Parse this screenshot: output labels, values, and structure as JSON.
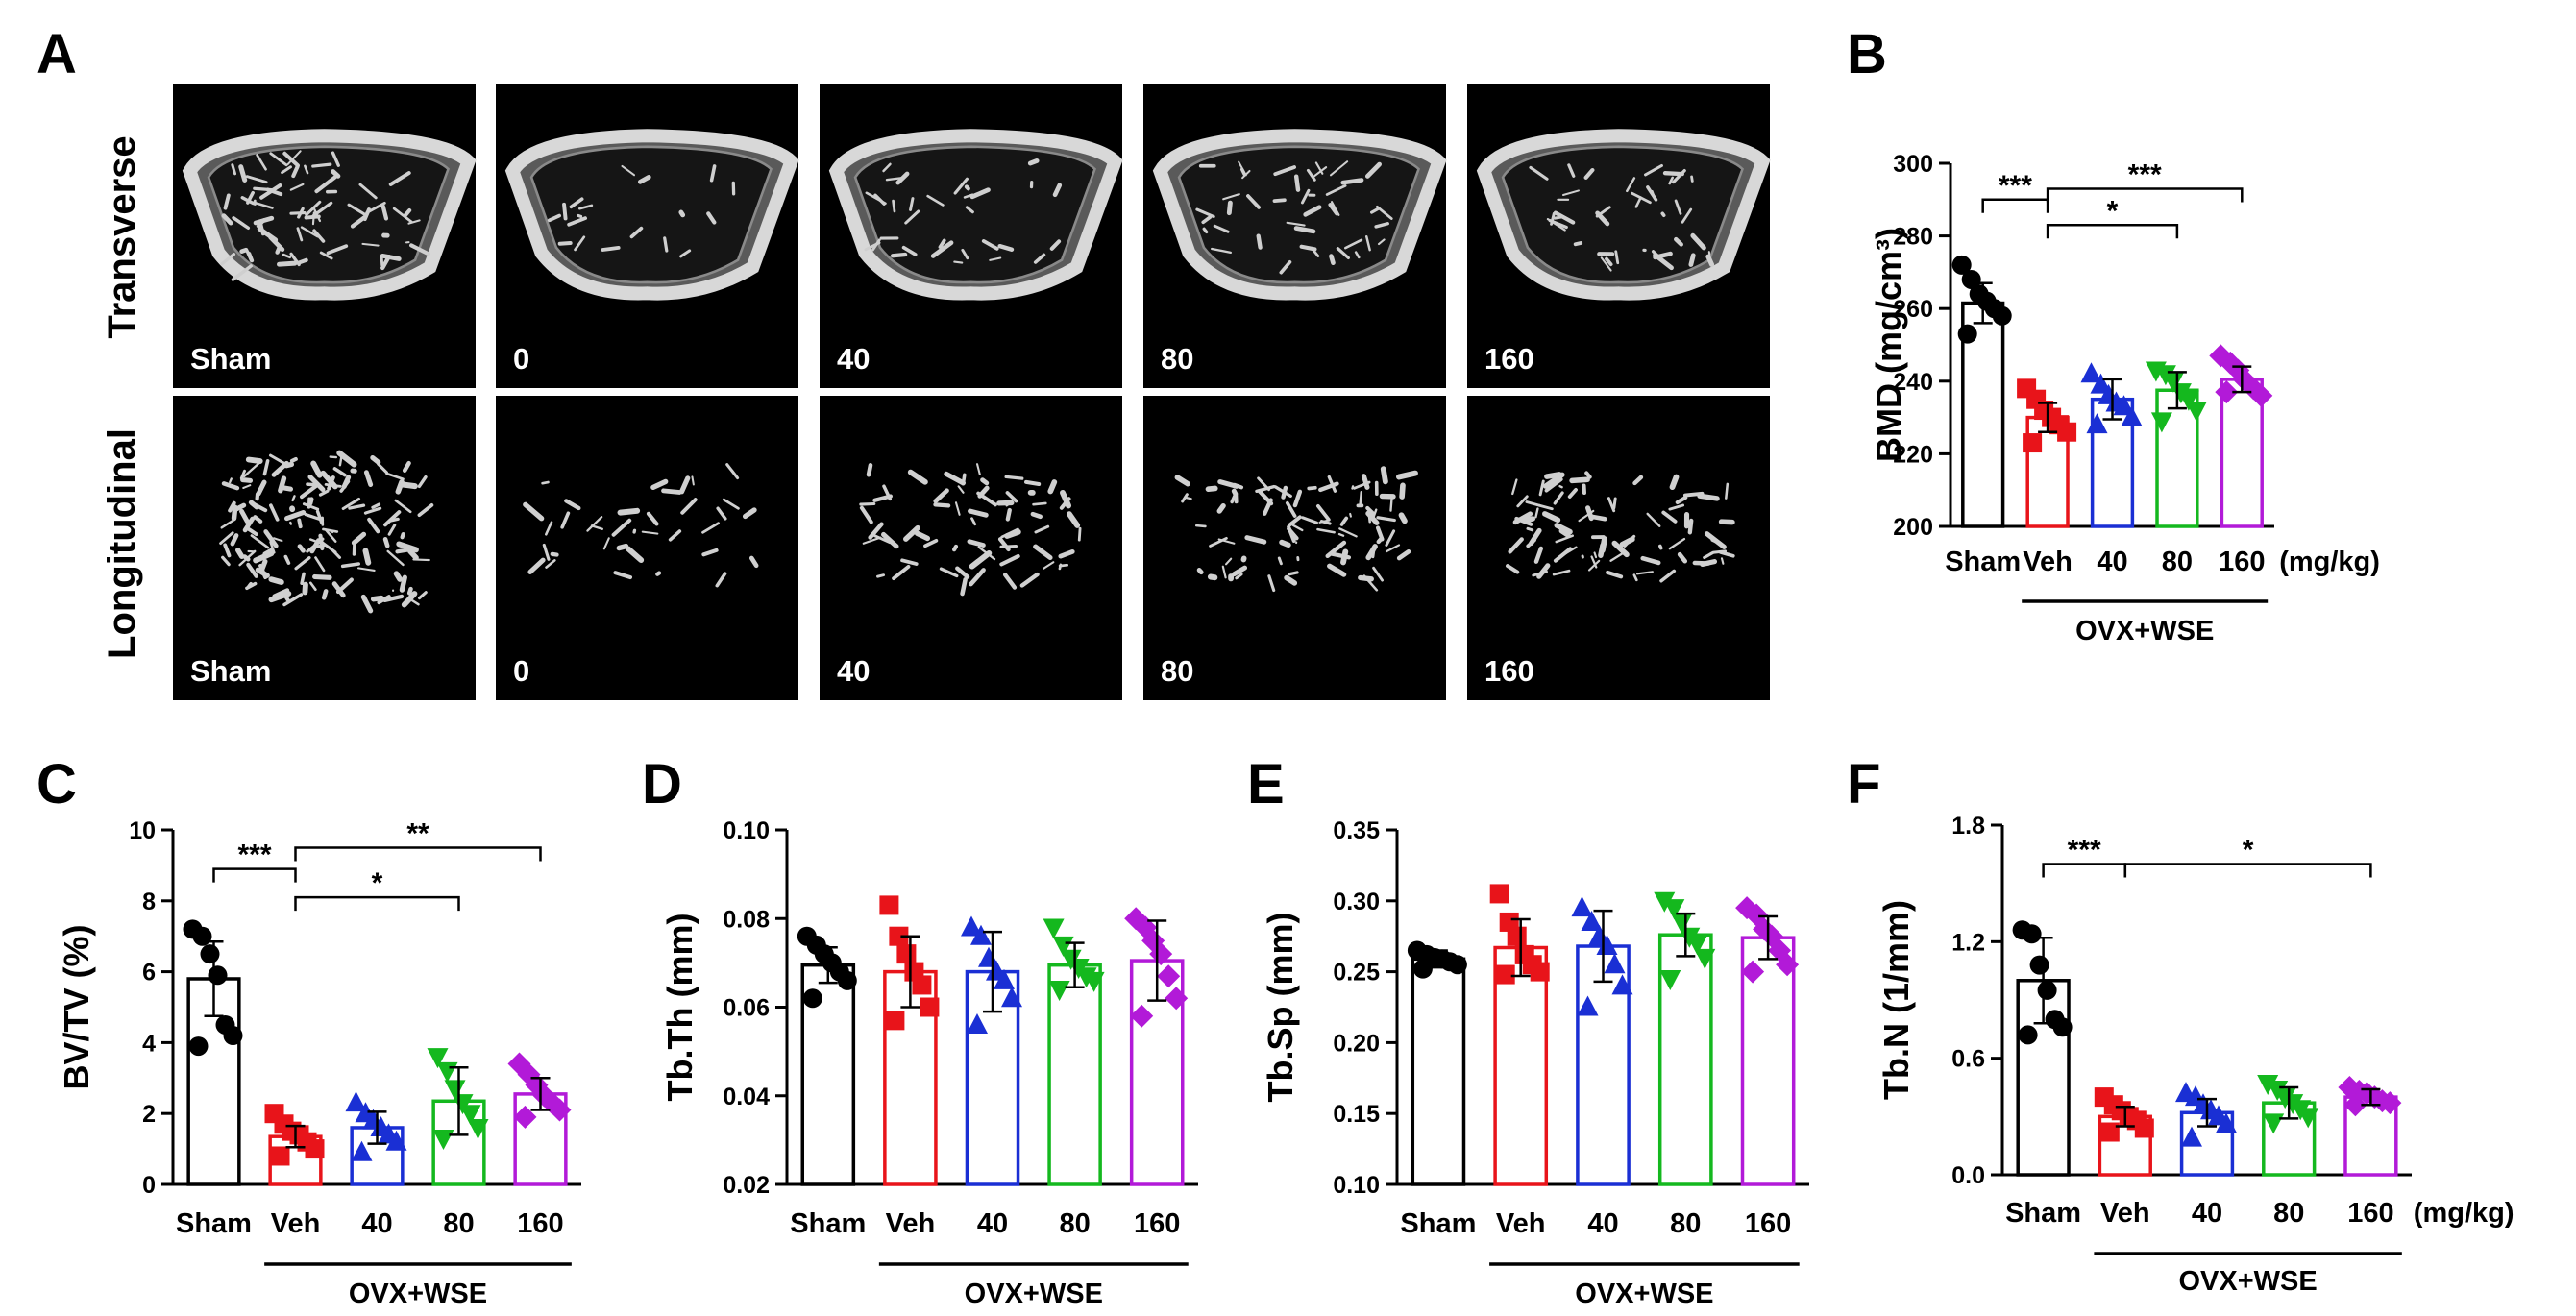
{
  "panels": {
    "A": {
      "letter": "A",
      "row_labels": [
        "Transverse",
        "Longitudinal"
      ],
      "column_labels": [
        "Sham",
        "0",
        "40",
        "80",
        "160"
      ]
    }
  },
  "categories": [
    "Sham",
    "Veh",
    "40",
    "80",
    "160"
  ],
  "colors": [
    "#000000",
    "#e8141a",
    "#1a2fd4",
    "#14b81e",
    "#b21ad8"
  ],
  "marker_shapes": [
    "circle",
    "square",
    "triangle-up",
    "triangle-down",
    "diamond"
  ],
  "group_label": "OVX+WSE",
  "unit_label": "(mg/kg)",
  "chart_data": [
    {
      "id": "B",
      "type": "bar",
      "letter": "B",
      "ylabel": "BMD (mg/cm³)",
      "ylim": [
        200,
        300
      ],
      "yticks": [
        200,
        220,
        240,
        260,
        280,
        300
      ],
      "decimals": 0,
      "categories": [
        "Sham",
        "Veh",
        "40",
        "80",
        "160"
      ],
      "values": [
        261.5,
        230,
        235,
        237.5,
        240.5
      ],
      "sd": [
        5.5,
        4,
        5.5,
        5,
        3.5
      ],
      "points": [
        [
          272,
          268,
          264,
          262,
          260,
          258,
          253
        ],
        [
          238,
          235,
          232,
          230,
          228,
          226,
          223
        ],
        [
          242,
          239,
          236,
          234,
          233,
          230,
          228
        ],
        [
          243,
          242,
          240,
          237,
          235,
          232,
          229
        ],
        [
          247,
          245,
          243,
          240,
          238,
          236,
          237
        ]
      ],
      "significance": [
        {
          "from": 0,
          "to": 1,
          "label": "***",
          "y": 290
        },
        {
          "from": 1,
          "to": 3,
          "label": "*",
          "y": 283
        },
        {
          "from": 1,
          "to": 4,
          "label": "***",
          "y": 293
        }
      ],
      "show_unit": true
    },
    {
      "id": "C",
      "type": "bar",
      "letter": "C",
      "ylabel": "BV/TV (%)",
      "ylim": [
        0,
        10
      ],
      "yticks": [
        0,
        2,
        4,
        6,
        8,
        10
      ],
      "decimals": 0,
      "categories": [
        "Sham",
        "Veh",
        "40",
        "80",
        "160"
      ],
      "values": [
        5.8,
        1.35,
        1.6,
        2.35,
        2.55
      ],
      "sd": [
        1.05,
        0.3,
        0.45,
        0.95,
        0.45
      ],
      "points": [
        [
          7.2,
          7.0,
          6.5,
          5.9,
          4.5,
          4.2,
          3.9
        ],
        [
          2.0,
          1.7,
          1.5,
          1.4,
          1.2,
          1.0,
          0.8
        ],
        [
          2.3,
          2.0,
          1.8,
          1.6,
          1.4,
          1.2,
          0.9
        ],
        [
          3.6,
          3.2,
          2.7,
          2.3,
          2.0,
          1.6,
          1.3
        ],
        [
          3.4,
          3.1,
          2.8,
          2.5,
          2.3,
          2.1,
          1.9
        ]
      ],
      "significance": [
        {
          "from": 0,
          "to": 1,
          "label": "***",
          "y": 8.9
        },
        {
          "from": 1,
          "to": 3,
          "label": "*",
          "y": 8.1
        },
        {
          "from": 1,
          "to": 4,
          "label": "**",
          "y": 9.5
        }
      ],
      "show_unit": false
    },
    {
      "id": "D",
      "type": "bar",
      "letter": "D",
      "ylabel": "Tb.Th (mm)",
      "ylim": [
        0.02,
        0.1
      ],
      "yticks": [
        0.02,
        0.04,
        0.06,
        0.08,
        0.1
      ],
      "decimals": 2,
      "categories": [
        "Sham",
        "Veh",
        "40",
        "80",
        "160"
      ],
      "values": [
        0.0695,
        0.068,
        0.068,
        0.0695,
        0.0705
      ],
      "sd": [
        0.004,
        0.008,
        0.009,
        0.005,
        0.009
      ],
      "points": [
        [
          0.076,
          0.074,
          0.072,
          0.07,
          0.068,
          0.066,
          0.062
        ],
        [
          0.083,
          0.076,
          0.072,
          0.068,
          0.065,
          0.06,
          0.057
        ],
        [
          0.078,
          0.076,
          0.071,
          0.068,
          0.066,
          0.062,
          0.056
        ],
        [
          0.078,
          0.074,
          0.071,
          0.069,
          0.067,
          0.066,
          0.064
        ],
        [
          0.08,
          0.078,
          0.075,
          0.072,
          0.067,
          0.062,
          0.058
        ]
      ],
      "significance": [],
      "show_unit": false
    },
    {
      "id": "E",
      "type": "bar",
      "letter": "E",
      "ylabel": "Tb.Sp (mm)",
      "ylim": [
        0.1,
        0.35
      ],
      "yticks": [
        0.1,
        0.15,
        0.2,
        0.25,
        0.3,
        0.35
      ],
      "decimals": 2,
      "categories": [
        "Sham",
        "Veh",
        "40",
        "80",
        "160"
      ],
      "values": [
        0.259,
        0.267,
        0.268,
        0.276,
        0.274
      ],
      "sd": [
        0.006,
        0.02,
        0.025,
        0.015,
        0.015
      ],
      "points": [
        [
          0.265,
          0.262,
          0.26,
          0.259,
          0.257,
          0.255,
          0.252
        ],
        [
          0.305,
          0.285,
          0.275,
          0.262,
          0.255,
          0.25,
          0.248
        ],
        [
          0.295,
          0.285,
          0.275,
          0.268,
          0.255,
          0.24,
          0.225
        ],
        [
          0.3,
          0.295,
          0.285,
          0.275,
          0.27,
          0.26,
          0.245
        ],
        [
          0.295,
          0.29,
          0.28,
          0.275,
          0.265,
          0.255,
          0.25
        ]
      ],
      "significance": [],
      "show_unit": false
    },
    {
      "id": "F",
      "type": "bar",
      "letter": "F",
      "ylabel": "Tb.N (1/mm)",
      "ylim": [
        0,
        1.8
      ],
      "yticks": [
        0.0,
        0.6,
        1.2,
        1.8
      ],
      "decimals": 1,
      "categories": [
        "Sham",
        "Veh",
        "40",
        "80",
        "160"
      ],
      "values": [
        1.0,
        0.3,
        0.32,
        0.37,
        0.4
      ],
      "sd": [
        0.22,
        0.05,
        0.07,
        0.08,
        0.04
      ],
      "points": [
        [
          1.26,
          1.24,
          1.08,
          0.95,
          0.8,
          0.76,
          0.72
        ],
        [
          0.4,
          0.36,
          0.33,
          0.3,
          0.28,
          0.24,
          0.22
        ],
        [
          0.42,
          0.4,
          0.36,
          0.33,
          0.3,
          0.26,
          0.19
        ],
        [
          0.47,
          0.44,
          0.4,
          0.37,
          0.34,
          0.3,
          0.27
        ],
        [
          0.45,
          0.43,
          0.42,
          0.4,
          0.38,
          0.37,
          0.36
        ]
      ],
      "significance": [
        {
          "from": 0,
          "to": 1,
          "label": "***",
          "y": 1.6
        },
        {
          "from": 1,
          "to": 4,
          "label": "*",
          "y": 1.6
        }
      ],
      "show_unit": true
    }
  ]
}
